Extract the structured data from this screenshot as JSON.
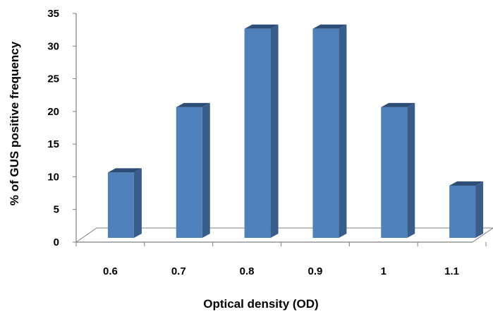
{
  "chart_data": {
    "type": "bar",
    "style": "3d-column",
    "categories": [
      "0.6",
      "0.7",
      "0.8",
      "0.9",
      "1",
      "1.1"
    ],
    "values": [
      10,
      20,
      32,
      32,
      20,
      8
    ],
    "xlabel": "Optical density (OD)",
    "ylabel": "% of GUS positive frequency",
    "ylim": [
      0,
      35
    ],
    "yticks": [
      "0",
      "5",
      "10",
      "15",
      "20",
      "25",
      "30",
      "35"
    ],
    "grid": false,
    "legend": "none",
    "colors": {
      "bar_front": "#4f81bd",
      "bar_side": "#385d8a",
      "bar_top": "#2c4d75",
      "axis": "#7f7f7f",
      "floor": "#ffffff"
    }
  }
}
